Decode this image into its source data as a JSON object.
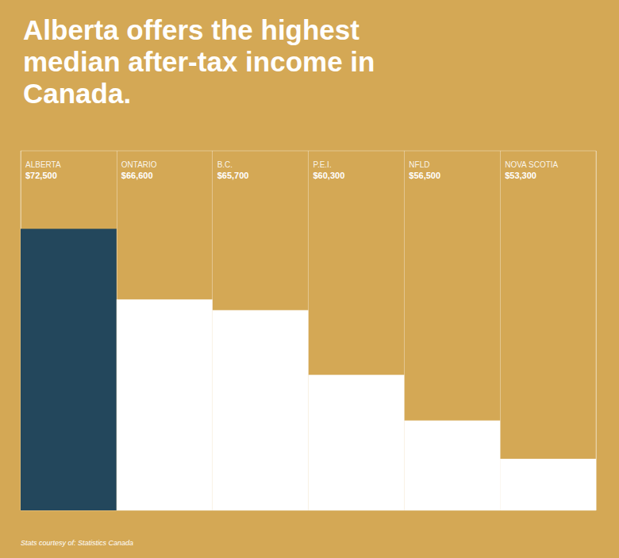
{
  "chart_data": {
    "type": "bar",
    "title": "Alberta offers the highest median after-tax income in Canada.",
    "categories": [
      "ALBERTA",
      "ONTARIO",
      "B.C.",
      "P.E.I.",
      "NFLD",
      "NOVA SCOTIA"
    ],
    "values": [
      72500,
      66600,
      65700,
      60300,
      56500,
      53300
    ],
    "value_labels": [
      "$72,500",
      "$66,600",
      "$65,700",
      "$60,300",
      "$56,500",
      "$53,300"
    ],
    "colors": [
      "#23475c",
      "#ffffff",
      "#ffffff",
      "#ffffff",
      "#ffffff",
      "#ffffff"
    ],
    "ylim": [
      49000,
      79000
    ],
    "data_labels": true,
    "tick_labels": false,
    "grid": false,
    "source": "Stats courtesy of: Statistics Canada"
  }
}
